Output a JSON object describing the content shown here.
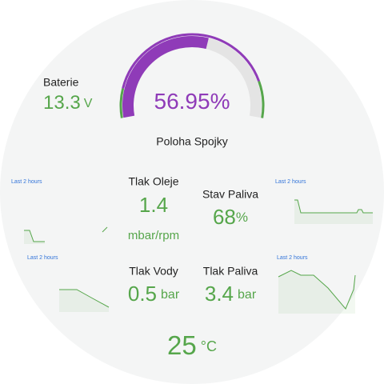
{
  "gauge": {
    "value": 56.95,
    "unit": "%",
    "label": "Poloha Spojky",
    "range": [
      0,
      100
    ]
  },
  "stats": [
    {
      "label": "Baterie",
      "value": "13.3",
      "unit": "V"
    },
    {
      "label": "Tlak Oleje",
      "value": "1.4",
      "unit": "mbar/rpm"
    },
    {
      "label": "Stav Paliva",
      "value": "68",
      "unit": "%"
    },
    {
      "label": "Tlak Vody",
      "value": "0.5",
      "unit": "bar"
    },
    {
      "label": "Tlak Paliva",
      "value": "3.4",
      "unit": "bar"
    },
    {
      "value": "25",
      "unit": "°C"
    }
  ],
  "sparklines": [
    {
      "time_range": "Last 2 hours"
    },
    {
      "time_range": "Last 2 hours"
    },
    {
      "time_range": "Last 2 hours"
    },
    {
      "time_range": "Last 2 hours"
    }
  ]
}
